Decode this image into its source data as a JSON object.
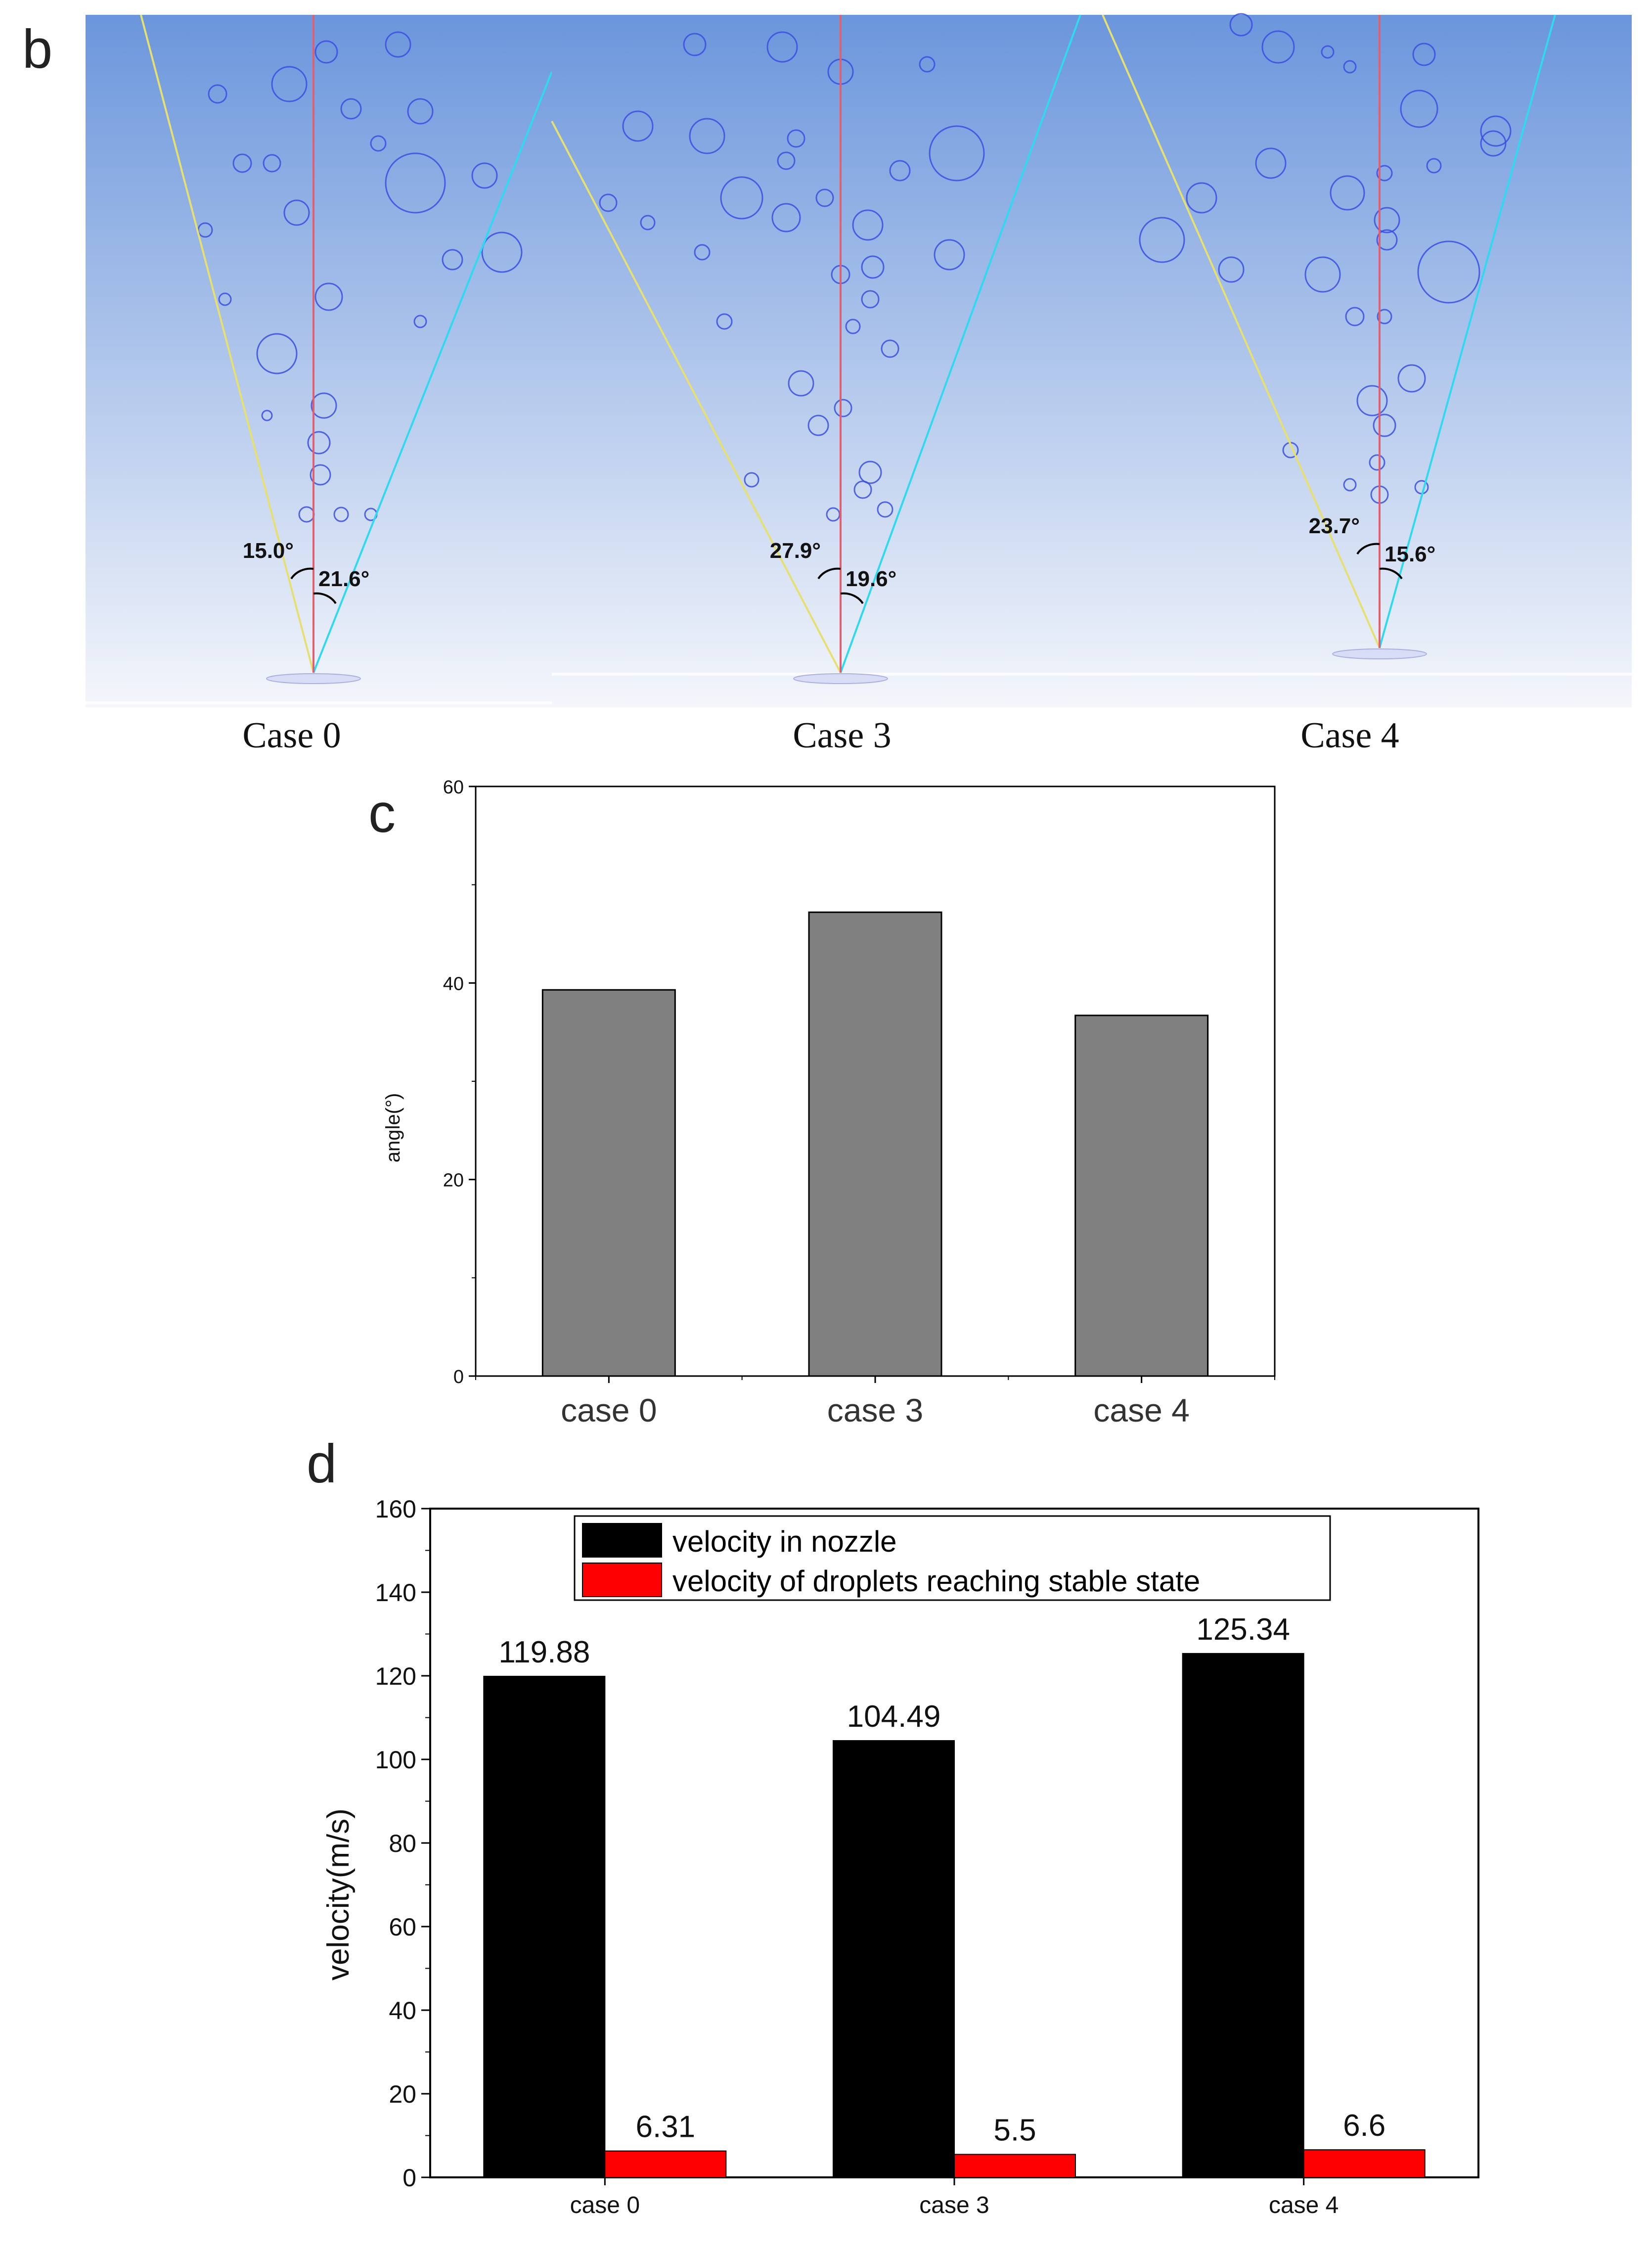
{
  "panel_b": {
    "letter": "b",
    "colors": {
      "sky_top": "#6b96dc",
      "sky_bottom": "#f4f6fb",
      "bubble": "#3b4fe0",
      "axis_line": "#e06070",
      "left_line": "#e6e070",
      "right_line": "#30d8f0"
    },
    "cases": [
      {
        "caption": "Case 0",
        "left_angle": "15.0°",
        "right_angle": "21.6°"
      },
      {
        "caption": "Case 3",
        "left_angle": "27.9°",
        "right_angle": "19.6°"
      },
      {
        "caption": "Case 4",
        "left_angle": "23.7°",
        "right_angle": "15.6°"
      }
    ]
  },
  "chart_data": [
    {
      "id": "c",
      "letter": "c",
      "type": "bar",
      "title": "",
      "xlabel": "",
      "ylabel": "angle(°)",
      "categories": [
        "case 0",
        "case 3",
        "case 4"
      ],
      "values": [
        39.3,
        47.2,
        36.7
      ],
      "ylim": [
        0,
        60
      ],
      "yticks": [
        0,
        20,
        40,
        60
      ],
      "bar_color": "#808080",
      "grid": false
    },
    {
      "id": "d",
      "letter": "d",
      "type": "bar",
      "title": "",
      "xlabel": "",
      "ylabel": "velocity(m/s)",
      "categories": [
        "case 0",
        "case 3",
        "case 4"
      ],
      "series": [
        {
          "name": "velocity in nozzle",
          "color": "#000000",
          "values": [
            119.88,
            104.49,
            125.34
          ],
          "labels": [
            "119.88",
            "104.49",
            "125.34"
          ]
        },
        {
          "name": "velocity of droplets reaching stable state",
          "color": "#ff0000",
          "values": [
            6.31,
            5.5,
            6.6
          ],
          "labels": [
            "6.31",
            "5.5",
            "6.6"
          ]
        }
      ],
      "ylim": [
        0,
        160
      ],
      "yticks": [
        0,
        20,
        40,
        60,
        80,
        100,
        120,
        140,
        160
      ],
      "legend_position": "top-right",
      "grid": false
    }
  ]
}
